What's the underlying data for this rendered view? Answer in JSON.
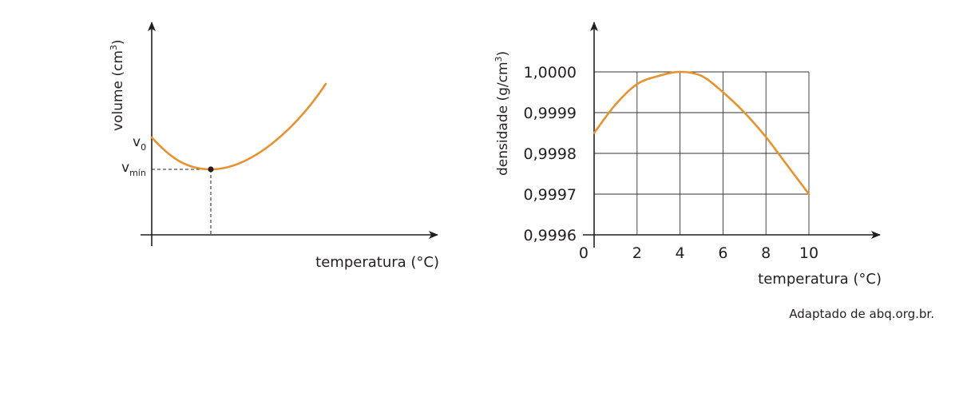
{
  "colors": {
    "curve": "#e8922e",
    "axis": "#231f20"
  },
  "chart_data": [
    {
      "type": "line",
      "xlabel": "temperatura (°C)",
      "ylabel_main": "volume (cm",
      "ylabel_sup": "3",
      "ylabel_end": ")",
      "tick_v0_main": "v",
      "tick_v0_sub": "0",
      "tick_vmin_main": "v",
      "tick_vmin_sub": "mín",
      "grid": false,
      "legend": "none",
      "qualitative": true
    },
    {
      "type": "line",
      "xlabel": "temperatura (°C)",
      "ylabel_main": "densidade (g/cm",
      "ylabel_sup": "3",
      "ylabel_end": ")",
      "origin_label": "0",
      "x_ticks": [
        "2",
        "4",
        "6",
        "8",
        "10"
      ],
      "x_tick_values": [
        2,
        4,
        6,
        8,
        10
      ],
      "y_ticks": [
        "0,9996",
        "0,9997",
        "0,9998",
        "0,9999",
        "1,0000"
      ],
      "y_tick_values": [
        0.9996,
        0.9997,
        0.9998,
        0.9999,
        1.0
      ],
      "xlim": [
        0,
        10
      ],
      "ylim": [
        0.9996,
        1.0
      ],
      "grid": true,
      "legend": "none",
      "series": [
        {
          "x": [
            0,
            1,
            2,
            3,
            4,
            5,
            6,
            7,
            8,
            9,
            10
          ],
          "y": [
            0.99985,
            0.99992,
            0.99997,
            0.99999,
            1.0,
            0.99999,
            0.99995,
            0.9999,
            0.99984,
            0.99977,
            0.9997
          ]
        }
      ]
    }
  ],
  "source": "Adaptado de abq.org.br."
}
